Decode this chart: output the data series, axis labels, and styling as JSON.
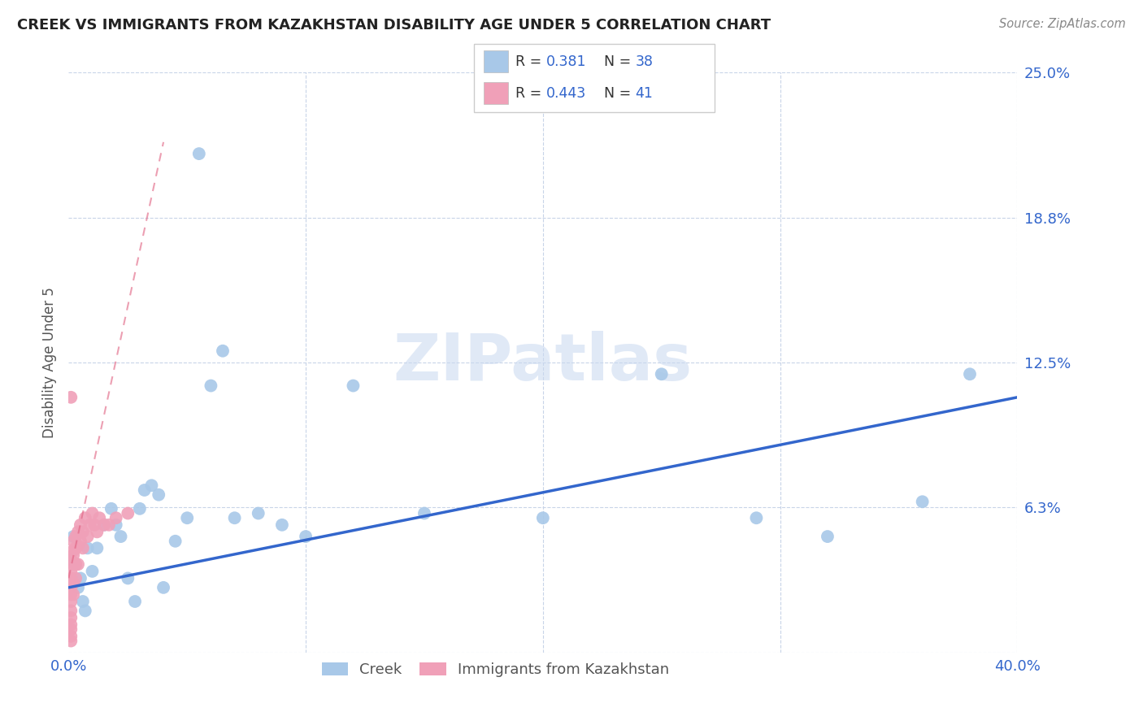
{
  "title": "CREEK VS IMMIGRANTS FROM KAZAKHSTAN DISABILITY AGE UNDER 5 CORRELATION CHART",
  "source": "Source: ZipAtlas.com",
  "ylabel_label": "Disability Age Under 5",
  "xlim": [
    0.0,
    0.4
  ],
  "ylim": [
    0.0,
    0.25
  ],
  "ytick_vals": [
    0.0,
    0.0625,
    0.125,
    0.1875,
    0.25
  ],
  "ytick_labels": [
    "",
    "6.3%",
    "12.5%",
    "18.8%",
    "25.0%"
  ],
  "xtick_vals": [
    0.0,
    0.1,
    0.2,
    0.3,
    0.4
  ],
  "xtick_labels": [
    "0.0%",
    "",
    "",
    "",
    "40.0%"
  ],
  "blue_color": "#a8c8e8",
  "pink_color": "#f0a0b8",
  "blue_line_color": "#3366cc",
  "pink_line_color": "#e06080",
  "grid_color": "#c8d4e8",
  "watermark_color": "#c8d8f0",
  "legend_R1": "0.381",
  "legend_N1": "38",
  "legend_R2": "0.443",
  "legend_N2": "41",
  "creek_x": [
    0.001,
    0.002,
    0.003,
    0.004,
    0.005,
    0.006,
    0.007,
    0.008,
    0.01,
    0.012,
    0.015,
    0.018,
    0.02,
    0.022,
    0.025,
    0.028,
    0.03,
    0.032,
    0.035,
    0.038,
    0.04,
    0.045,
    0.05,
    0.06,
    0.065,
    0.07,
    0.08,
    0.09,
    0.1,
    0.12,
    0.15,
    0.2,
    0.25,
    0.29,
    0.32,
    0.36,
    0.38
  ],
  "creek_y": [
    0.04,
    0.05,
    0.038,
    0.028,
    0.032,
    0.022,
    0.018,
    0.045,
    0.035,
    0.045,
    0.055,
    0.062,
    0.055,
    0.05,
    0.032,
    0.022,
    0.062,
    0.07,
    0.072,
    0.068,
    0.028,
    0.048,
    0.058,
    0.115,
    0.13,
    0.058,
    0.06,
    0.055,
    0.05,
    0.115,
    0.06,
    0.058,
    0.12,
    0.058,
    0.05,
    0.065,
    0.12
  ],
  "creek_outlier_x": [
    0.055
  ],
  "creek_outlier_y": [
    0.215
  ],
  "kaz_x": [
    0.001,
    0.001,
    0.001,
    0.001,
    0.001,
    0.001,
    0.001,
    0.001,
    0.001,
    0.001,
    0.001,
    0.001,
    0.002,
    0.002,
    0.002,
    0.002,
    0.002,
    0.002,
    0.003,
    0.003,
    0.003,
    0.003,
    0.004,
    0.004,
    0.004,
    0.005,
    0.005,
    0.006,
    0.006,
    0.007,
    0.008,
    0.009,
    0.01,
    0.011,
    0.012,
    0.013,
    0.015,
    0.017,
    0.02,
    0.025,
    0.001
  ],
  "kaz_y": [
    0.025,
    0.022,
    0.018,
    0.015,
    0.012,
    0.01,
    0.007,
    0.005,
    0.032,
    0.028,
    0.04,
    0.035,
    0.042,
    0.038,
    0.03,
    0.025,
    0.048,
    0.044,
    0.05,
    0.045,
    0.038,
    0.032,
    0.052,
    0.046,
    0.038,
    0.055,
    0.048,
    0.052,
    0.045,
    0.058,
    0.05,
    0.055,
    0.06,
    0.055,
    0.052,
    0.058,
    0.055,
    0.055,
    0.058,
    0.06,
    0.11
  ],
  "blue_trend_x": [
    0.0,
    0.4
  ],
  "blue_trend_y": [
    0.028,
    0.11
  ],
  "pink_trend_x": [
    0.0,
    0.04
  ],
  "pink_trend_y": [
    0.032,
    0.22
  ]
}
